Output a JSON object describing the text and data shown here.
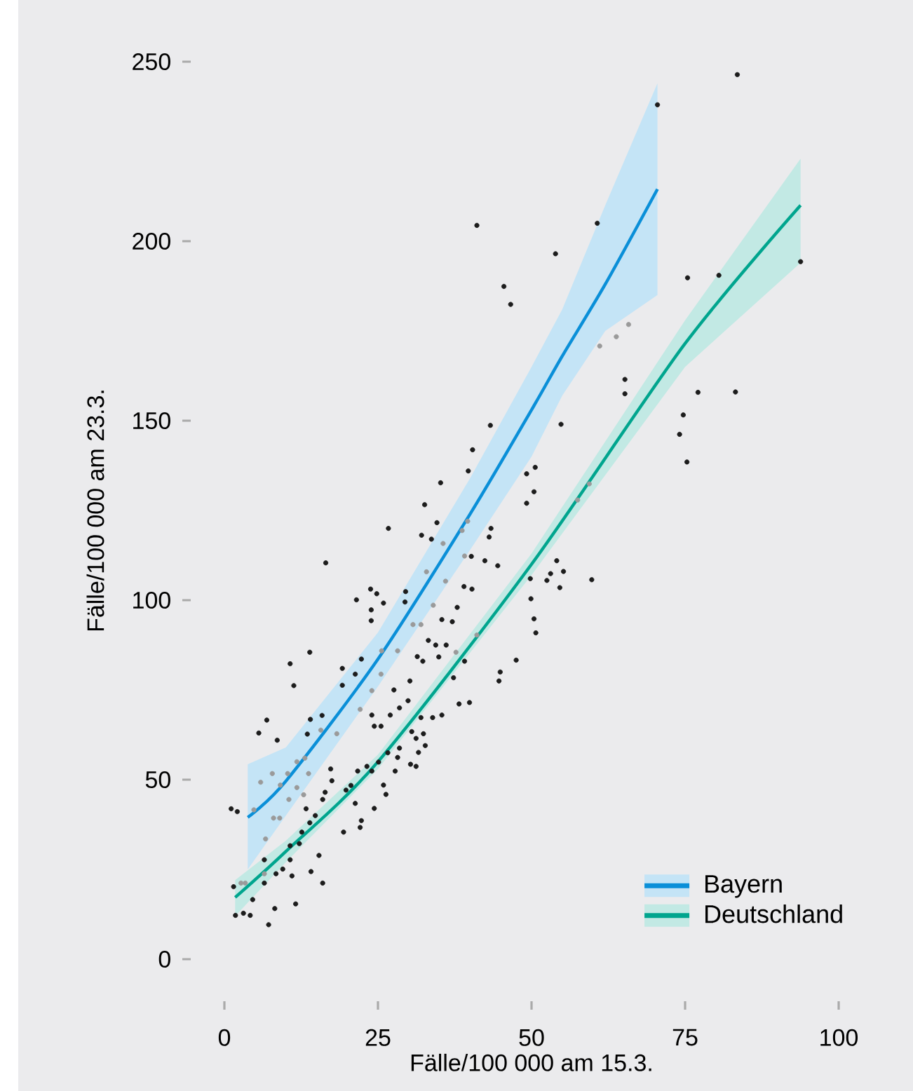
{
  "chart_data": {
    "type": "scatter",
    "xlabel": "Fälle/100 000 am 15.3.",
    "ylabel": "Fälle/100 000 am 23.3.",
    "xlim": [
      0,
      100
    ],
    "ylim": [
      0,
      250
    ],
    "xticks": [
      0,
      25,
      50,
      75,
      100
    ],
    "yticks": [
      0,
      50,
      100,
      150,
      200,
      250
    ],
    "legend": "bottom right",
    "series": [
      {
        "color": "#1c1c1c",
        "marker": "circle",
        "x": [
          41.1,
          83.5,
          70.5,
          60.7,
          53.9,
          45.5,
          46.6,
          75.4,
          80.5,
          93.8,
          65.2,
          65.2,
          77.1,
          83.2,
          74.7,
          74.1,
          75.3,
          43.3,
          54.8,
          40.4,
          39.7,
          35.2,
          50.6,
          49.2,
          26.7,
          16.5,
          32.6,
          34.6,
          32.1,
          33.7,
          50.4,
          49.2,
          43.4,
          43.1,
          40.2,
          42.4,
          44.5,
          49.8,
          54.1,
          55.2,
          53.1,
          52.5,
          54.6,
          59.8,
          49.9,
          50.4,
          50.7,
          47.5,
          44.9,
          44.7,
          39.9,
          38.2,
          21.5,
          23.8,
          24.8,
          25.9,
          23.9,
          23.9,
          29.5,
          29.4,
          39.0,
          40.3,
          37.9,
          37.1,
          35.4,
          33.2,
          34.4,
          36.1,
          34.9,
          31.4,
          32.3,
          39.1,
          37.3,
          30.2,
          27.6,
          10.7,
          13.9,
          11.3,
          19.2,
          19.2,
          22.3,
          21.3,
          5.6,
          6.9,
          8.6,
          14.0,
          15.9,
          13.5,
          1.1,
          2.1,
          17.3,
          16.0,
          13.9,
          12.2,
          10.7,
          8.4,
          6.5,
          4.6,
          3.1,
          7.2,
          4.2,
          1.8,
          1.5,
          8.2,
          11.6,
          16.0,
          14.1,
          15.4,
          19.4,
          22.1,
          22.3,
          21.3,
          19.8,
          24.4,
          26.3,
          25.9,
          27.8,
          31.2,
          30.3,
          31.6,
          32.7,
          31.2,
          32.4,
          33.9,
          35.4,
          32.0,
          30.5,
          28.5,
          28.2,
          26.6,
          25.1,
          24.0,
          23.2,
          21.7,
          20.6,
          17.5,
          16.4,
          14.8,
          13.3,
          12.6,
          10.7,
          9.5,
          6.5,
          11.0,
          25.5,
          24.4,
          27.0,
          28.5,
          29.9,
          24.0
        ],
        "values": [
          204.4,
          246.4,
          238,
          205,
          196.5,
          187.4,
          182.4,
          189.8,
          190.5,
          194.3,
          161.5,
          157.5,
          157.9,
          158,
          151.6,
          146.2,
          138.5,
          148.7,
          149,
          141.9,
          136,
          132.7,
          137,
          135.2,
          120,
          110.4,
          126.6,
          121.6,
          118.1,
          117,
          130.2,
          127,
          120,
          117.6,
          112.2,
          111,
          109.6,
          106,
          111,
          108,
          107.4,
          105.5,
          103.5,
          105.7,
          100.4,
          94.8,
          90.9,
          83.3,
          80,
          77.5,
          71.5,
          71.1,
          100.1,
          103.1,
          101.8,
          99.2,
          97.3,
          94.3,
          102.4,
          99.5,
          103.8,
          103.1,
          98,
          94,
          94.6,
          88.8,
          87.5,
          87.5,
          84.2,
          84.3,
          83,
          83,
          78.4,
          77.5,
          75,
          82.3,
          85.5,
          76.2,
          81,
          76.3,
          83.6,
          79.4,
          63,
          66.6,
          61,
          66.8,
          67.9,
          62.7,
          41.9,
          41.1,
          53,
          44.5,
          38,
          32.2,
          27.7,
          23.8,
          21.2,
          16.6,
          12.8,
          9.6,
          12.2,
          12.2,
          20.2,
          14.1,
          15.4,
          21.2,
          24.4,
          28.9,
          35.4,
          36.7,
          38.6,
          43.4,
          47.1,
          42,
          45.9,
          48.5,
          52.4,
          53.7,
          54.3,
          57.6,
          59.5,
          61.5,
          62.8,
          67.3,
          68,
          67.3,
          63.4,
          58.8,
          56.2,
          57.5,
          54.9,
          52.4,
          53.7,
          52.4,
          48.4,
          49.7,
          46.5,
          40,
          41.9,
          35.4,
          31.6,
          25.1,
          27.7,
          23.2,
          64.9,
          64.9,
          68,
          70,
          72,
          68
        ]
      },
      {
        "color": "#9a9a9a",
        "marker": "circle",
        "x": [
          61.1,
          63.8,
          65.8,
          59.4,
          5.9,
          7.8,
          4.8,
          9.1,
          10.3,
          11.8,
          13.1,
          13.7,
          10.5,
          8.0,
          6.7,
          9.0,
          15.7,
          18.3,
          22.1,
          24.0,
          25.5,
          25.6,
          28.2,
          30.7,
          32.0,
          34.0,
          32.9,
          36.0,
          35.6,
          38.7,
          39.6,
          39.1,
          3.4,
          2.7,
          6.5,
          12.9,
          11.8,
          57.5,
          41.1,
          37.7
        ],
        "values": [
          170.8,
          173.4,
          176.8,
          132.4,
          49.3,
          51.7,
          41.6,
          48.5,
          51.7,
          55,
          56,
          51.7,
          44.5,
          39.3,
          33.5,
          39.3,
          63.8,
          62.8,
          69.6,
          74.8,
          79.4,
          85.9,
          85.9,
          93.2,
          93.2,
          98.6,
          107.9,
          105.3,
          115.8,
          119.4,
          122,
          112.3,
          21.2,
          21.2,
          23.8,
          45.8,
          47.8,
          127.9,
          90.3,
          85.5
        ]
      },
      {
        "type": "line",
        "name": "Bayern",
        "color": "#0a8fd8",
        "marker": "none",
        "x": [
          3.8,
          10,
          25,
          40,
          50,
          55,
          62,
          70.5
        ],
        "values": [
          39.5,
          49.6,
          83.6,
          124,
          153,
          168,
          188,
          214.5
        ],
        "lower": [
          25,
          40,
          76,
          114,
          140,
          157,
          175,
          185
        ],
        "upper": [
          54.3,
          59,
          91,
          134,
          165,
          181,
          210,
          244
        ]
      },
      {
        "type": "line",
        "name": "Deutschland",
        "color": "#00a58e",
        "marker": "none",
        "x": [
          1.75,
          10,
          25,
          50,
          75,
          93.8
        ],
        "values": [
          17.2,
          30,
          55,
          110,
          171.5,
          210
        ],
        "lower": [
          12,
          27,
          53,
          107,
          165,
          194
        ],
        "upper": [
          22,
          33,
          57,
          113,
          178,
          223
        ]
      }
    ]
  }
}
